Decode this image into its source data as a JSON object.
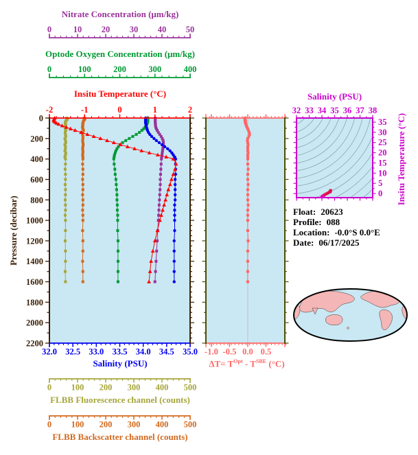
{
  "colors": {
    "panel_bg": "#C9E8F3",
    "background": "#FFFFFF",
    "map_land": "#F4B6B6",
    "map_ocean": "#C9E8F3",
    "map_outline": "#000000",
    "ts_profile": "#E01050",
    "ts_surface_dot": "#EE00AA",
    "delta_zero_gridline": "#BBBBCC"
  },
  "axes": {
    "pressure": {
      "title": "Pressure (decibar)",
      "color": "#3A1F04",
      "range": [
        0,
        2200
      ],
      "major_step": 200,
      "minor_step": 100
    },
    "temperature_top": {
      "title": "Insitu Temperature (°C)",
      "color": "#FF0000",
      "range": [
        -2,
        2
      ],
      "majors": [
        -2,
        -1,
        0,
        1,
        2
      ],
      "minor_step": 0.2,
      "decimals": 0
    },
    "salinity_bottom": {
      "title": "Salinity (PSU)",
      "color": "#0000EE",
      "range": [
        32,
        35
      ],
      "majors": [
        32,
        32.5,
        33,
        33.5,
        34,
        34.5,
        35
      ],
      "minor_step": 0.1,
      "decimals": 1
    },
    "nitrate": {
      "title": "Nitrate Concentration (μm/kg)",
      "color": "#993399",
      "range": [
        0,
        50
      ],
      "majors": [
        0,
        10,
        20,
        30,
        40,
        50
      ],
      "minor_step": 2,
      "decimals": 0
    },
    "oxygen": {
      "title": "Optode Oxygen Concentration (μm/kg)",
      "color": "#009933",
      "range": [
        0,
        400
      ],
      "majors": [
        0,
        100,
        200,
        300,
        400
      ],
      "minor_step": 20,
      "decimals": 0
    },
    "fluorescence": {
      "title": "FLBB Fluorescence channel (counts)",
      "color": "#A6A63C",
      "range": [
        0,
        500
      ],
      "majors": [
        0,
        100,
        200,
        300,
        400,
        500
      ],
      "minor_step": 20,
      "decimals": 0
    },
    "backscatter": {
      "title": "FLBB Backscatter channel (counts)",
      "color": "#D2691E",
      "range": [
        0,
        500
      ],
      "majors": [
        0,
        100,
        200,
        300,
        400,
        500
      ],
      "minor_step": 20,
      "decimals": 0
    },
    "delta_t": {
      "title_parts": {
        "prefix": "ΔT= T",
        "sup1": "Opt",
        "mid": " - T",
        "sup2": "SBE",
        "suffix": " (°C)"
      },
      "color": "#FF6666",
      "frame_side_color": "#4D4D00",
      "range": [
        -1.15,
        1.02
      ],
      "majors": [
        -1.0,
        -0.5,
        0.0,
        0.5
      ],
      "minor_step": 0.1,
      "decimals": 1
    },
    "ts_salinity": {
      "title": "Salinity (PSU)",
      "color": "#CC00CC",
      "range": [
        32,
        38
      ],
      "majors": [
        32,
        33,
        34,
        35,
        36,
        37,
        38
      ],
      "minor_step": 0.5,
      "decimals": 0
    },
    "ts_temperature": {
      "title": "Insitu Temperature (°C)",
      "color": "#CC00CC",
      "range": [
        -2,
        37
      ],
      "majors": [
        0,
        5,
        10,
        15,
        20,
        25,
        30,
        35
      ],
      "minor_step": 2.5,
      "decimals": 0
    }
  },
  "float_info": {
    "float_label": "Float:",
    "float_value": "20623",
    "profile_label": "Profile:",
    "profile_value": "088",
    "location_label": "Location:",
    "location_value": "-0.0°S  0.0°E",
    "date_label": "Date:",
    "date_value": "06/17/2025"
  },
  "chart_data": [
    {
      "type": "line",
      "id": "profile-plot",
      "y_axis": {
        "label": "Pressure (decibar)",
        "range": [
          0,
          2200
        ],
        "tick_step": 200
      },
      "pressures": [
        0,
        10,
        20,
        30,
        40,
        50,
        60,
        75,
        90,
        105,
        120,
        140,
        160,
        180,
        200,
        220,
        240,
        260,
        280,
        300,
        320,
        340,
        360,
        380,
        400,
        450,
        500,
        550,
        600,
        650,
        700,
        750,
        800,
        850,
        900,
        950,
        1000,
        1100,
        1200,
        1300,
        1400,
        1500,
        1600
      ],
      "series": [
        {
          "id": "temperature",
          "name": "Insitu Temperature",
          "units": "°C",
          "axis": "temperature_top",
          "color": "#FF0000",
          "marker": "triangle",
          "values": [
            -1.85,
            -1.87,
            -1.88,
            -1.87,
            -1.84,
            -1.8,
            -1.74,
            -1.64,
            -1.52,
            -1.4,
            -1.27,
            -1.1,
            -0.92,
            -0.74,
            -0.55,
            -0.36,
            -0.17,
            0.02,
            0.22,
            0.42,
            0.62,
            0.84,
            1.08,
            1.32,
            1.52,
            1.6,
            1.57,
            1.52,
            1.47,
            1.43,
            1.38,
            1.34,
            1.3,
            1.26,
            1.22,
            1.18,
            1.14,
            1.07,
            1.0,
            0.94,
            0.89,
            0.86,
            0.83
          ]
        },
        {
          "id": "salinity",
          "name": "Salinity",
          "units": "PSU",
          "axis": "salinity_bottom",
          "color": "#0000EE",
          "marker": "circle",
          "values": [
            34.05,
            34.05,
            34.05,
            34.05,
            34.05,
            34.05,
            34.06,
            34.06,
            34.07,
            34.08,
            34.09,
            34.11,
            34.14,
            34.18,
            34.23,
            34.28,
            34.34,
            34.4,
            34.46,
            34.52,
            34.57,
            34.61,
            34.64,
            34.67,
            34.69,
            34.69,
            34.69,
            34.69,
            34.68,
            34.68,
            34.68,
            34.68,
            34.68,
            34.67,
            34.67,
            34.67,
            34.67,
            34.67,
            34.66,
            34.66,
            34.66,
            34.66,
            34.66
          ]
        },
        {
          "id": "oxygen",
          "name": "Optode Oxygen Concentration",
          "units": "μm/kg",
          "axis": "oxygen",
          "color": "#009933",
          "marker": "square",
          "values": [
            280,
            280,
            280,
            280,
            279,
            278,
            277,
            275,
            272,
            268,
            263,
            256,
            247,
            237,
            227,
            217,
            208,
            201,
            196,
            192,
            189,
            187,
            185,
            184,
            183,
            184,
            186,
            187,
            189,
            190,
            191,
            192,
            192,
            193,
            193,
            194,
            194,
            194,
            195,
            195,
            195,
            195,
            195
          ]
        },
        {
          "id": "nitrate",
          "name": "Nitrate Concentration",
          "units": "μm/kg",
          "axis": "nitrate",
          "color": "#993399",
          "marker": "square",
          "values": [
            37.6,
            37.6,
            37.6,
            37.6,
            37.6,
            37.6,
            37.7,
            37.7,
            37.8,
            38.0,
            38.3,
            38.7,
            39.2,
            39.7,
            40.1,
            40.4,
            40.5,
            40.5,
            40.4,
            40.3,
            40.2,
            40.1,
            40.0,
            39.9,
            39.8,
            39.7,
            39.6,
            39.5,
            39.4,
            39.4,
            39.3,
            39.2,
            39.1,
            39.0,
            38.9,
            38.8,
            38.7,
            38.5,
            38.3,
            38.1,
            37.9,
            37.7,
            37.5
          ]
        },
        {
          "id": "fluorescence",
          "name": "FLBB Fluorescence channel",
          "units": "counts",
          "axis": "fluorescence",
          "color": "#A6A63C",
          "marker": "square",
          "values": [
            62,
            64,
            61,
            58,
            57,
            56,
            58,
            57,
            55,
            57,
            58,
            56,
            57,
            58,
            55,
            57,
            58,
            55,
            57,
            57,
            55,
            58,
            57,
            55,
            57,
            57,
            56,
            57,
            57,
            56,
            57,
            57,
            56,
            57,
            57,
            56,
            57,
            57,
            56,
            57,
            57,
            56,
            57
          ]
        },
        {
          "id": "backscatter",
          "name": "FLBB Backscatter channel",
          "units": "counts",
          "axis": "backscatter",
          "color": "#D2691E",
          "marker": "square",
          "values": [
            124,
            126,
            123,
            121,
            120,
            119,
            118,
            119,
            117,
            119,
            121,
            119,
            118,
            119,
            119,
            118,
            119,
            120,
            119,
            118,
            119,
            119,
            118,
            119,
            119,
            118,
            119,
            119,
            118,
            119,
            119,
            118,
            119,
            119,
            118,
            119,
            119,
            118,
            119,
            119,
            118,
            119,
            119
          ]
        }
      ]
    },
    {
      "type": "line",
      "id": "delta-t-plot",
      "x_axis": {
        "label": "ΔT= TOpt - TSBE (°C)",
        "range": [
          -1.15,
          1.02
        ],
        "major_ticks": [
          -1.0,
          -0.5,
          0.0,
          0.5
        ]
      },
      "pressures": [
        0,
        10,
        20,
        30,
        40,
        50,
        60,
        75,
        90,
        105,
        120,
        140,
        160,
        180,
        200,
        220,
        240,
        260,
        280,
        300,
        320,
        340,
        360,
        380,
        400,
        450,
        500,
        550,
        600,
        650,
        700,
        750,
        800,
        850,
        900,
        950,
        1000,
        1100,
        1200,
        1300,
        1400,
        1500,
        1600
      ],
      "series": [
        {
          "id": "delta_t",
          "name": "ΔT",
          "units": "°C",
          "axis": "delta_t",
          "color": "#FF6666",
          "marker": "square",
          "values": [
            -0.08,
            -0.07,
            -0.08,
            -0.06,
            -0.07,
            -0.06,
            -0.05,
            -0.04,
            -0.02,
            0.0,
            0.02,
            0.04,
            0.05,
            0.03,
            0.0,
            -0.01,
            0.0,
            0.01,
            0.0,
            0.0,
            0.0,
            0.01,
            0.0,
            0.0,
            0.0,
            0.0,
            0.01,
            0.0,
            0.0,
            0.01,
            0.0,
            0.0,
            0.0,
            0.01,
            0.0,
            0.0,
            0.0,
            0.0,
            0.01,
            0.0,
            0.0,
            0.0,
            0.0
          ]
        }
      ]
    },
    {
      "type": "scatter",
      "id": "ts-diagram",
      "x_axis": {
        "label": "Salinity (PSU)",
        "range": [
          32,
          38
        ],
        "ticks": [
          32,
          33,
          34,
          35,
          36,
          37,
          38
        ]
      },
      "y_axis": {
        "label": "Insitu Temperature (°C)",
        "range": [
          -2,
          37
        ],
        "ticks": [
          0,
          5,
          10,
          15,
          20,
          25,
          30,
          35
        ]
      },
      "background": "density contour arcs",
      "color": "#E01050",
      "source": "pairs of (salinity, temperature) from profile-plot series"
    }
  ]
}
